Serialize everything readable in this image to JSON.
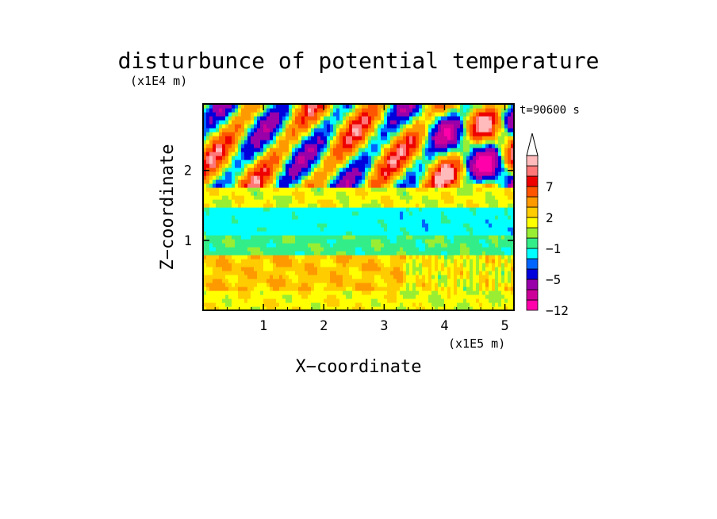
{
  "chart_data": {
    "type": "heatmap",
    "title": "disturbunce of potential temperature",
    "time_label": "t=90600 s",
    "xlabel": "X−coordinate",
    "ylabel": "Z−coordinate",
    "x_unit": "(x1E5 m)",
    "y_unit": "(x1E4 m)",
    "xlim": [
      0,
      5.15
    ],
    "ylim": [
      0,
      2.95
    ],
    "x_ticks": [
      "1",
      "2",
      "3",
      "4",
      "5"
    ],
    "y_ticks": [
      "1",
      "2"
    ],
    "x_tick_values": [
      1,
      2,
      3,
      4,
      5
    ],
    "y_tick_values": [
      1,
      2
    ],
    "colorbar": {
      "levels": [
        -12,
        -9,
        -7,
        -5,
        -3,
        -2,
        -1,
        0,
        1,
        2,
        3,
        5,
        7,
        8,
        9
      ],
      "labels": [
        {
          "value": -12,
          "text": "−12"
        },
        {
          "value": -5,
          "text": "−5"
        },
        {
          "value": -1,
          "text": "−1"
        },
        {
          "value": 2,
          "text": "2"
        },
        {
          "value": 7,
          "text": "7"
        }
      ],
      "colors": [
        "#ff00aa",
        "#cc0099",
        "#9900aa",
        "#0000dd",
        "#0066ff",
        "#00ffff",
        "#33ee88",
        "#99ee33",
        "#ffff00",
        "#ffcc00",
        "#ff9900",
        "#ff5500",
        "#ee0000",
        "#ff7777",
        "#ffbbbb"
      ],
      "extend": "max"
    },
    "field_description_layers": [
      {
        "z_range": [
          0,
          0.3
        ],
        "value": 1.5
      },
      {
        "z_range": [
          0.3,
          0.8
        ],
        "value": 2.5
      },
      {
        "z_range": [
          0.8,
          1.05
        ],
        "value": -0.5
      },
      {
        "z_range": [
          1.05,
          1.45
        ],
        "value": -1.5
      },
      {
        "z_range": [
          1.45,
          1.75
        ],
        "value": 1.5
      },
      {
        "z_range": [
          1.75,
          2.95
        ],
        "value": "alternating -6 to 8"
      }
    ]
  }
}
